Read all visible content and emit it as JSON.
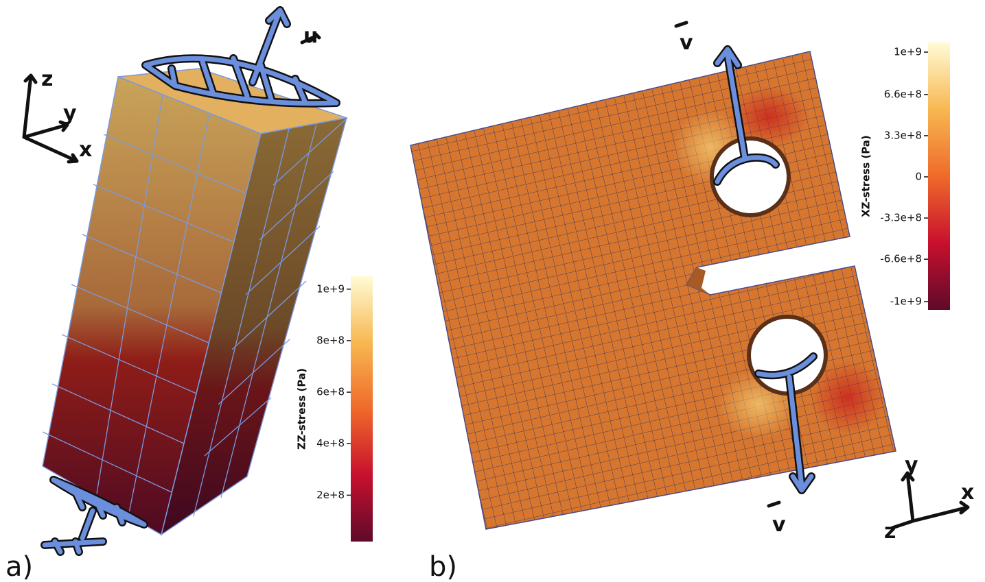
{
  "panel_a": {
    "label": "a)",
    "axis_labels": [
      "z",
      "y",
      "x"
    ],
    "vector": "u",
    "colorbar": {
      "title": "ZZ-stress (Pa)",
      "range": [
        20000000,
        1050000000
      ],
      "ticks": [
        {
          "value": 1000000000,
          "label": "1e+9"
        },
        {
          "value": 800000000,
          "label": "8e+8"
        },
        {
          "value": 600000000,
          "label": "6e+8"
        },
        {
          "value": 400000000,
          "label": "4e+8"
        },
        {
          "value": 200000000,
          "label": "2e+8"
        }
      ]
    }
  },
  "panel_b": {
    "label": "b)",
    "axis_labels": [
      "y",
      "x",
      "z"
    ],
    "vector": "v",
    "colorbar": {
      "title": "XZ-stress (Pa)",
      "range": [
        -1066000000,
        1077000000
      ],
      "ticks": [
        {
          "value": 1000000000,
          "label": "1e+9"
        },
        {
          "value": 660000000,
          "label": "6.6e+8"
        },
        {
          "value": 330000000,
          "label": "3.3e+8"
        },
        {
          "value": 0,
          "label": "0"
        },
        {
          "value": -330000000,
          "label": "-3.3e+8"
        },
        {
          "value": -660000000,
          "label": "-6.6e+8"
        },
        {
          "value": -1000000000,
          "label": "-1e+9"
        }
      ]
    }
  }
}
